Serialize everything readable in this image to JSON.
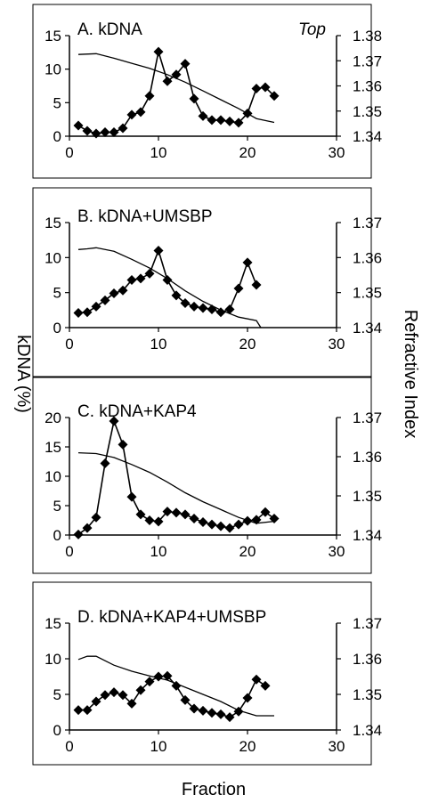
{
  "figure": {
    "ylabel_left": "kDNA (%)",
    "ylabel_right": "Refractive Index",
    "xlabel": "Fraction"
  },
  "chart_data": [
    {
      "type": "line",
      "title": "A. kDNA",
      "annotation": "Top",
      "xlim": [
        0,
        30
      ],
      "x_ticks": [
        0,
        10,
        20,
        30
      ],
      "ylim": [
        0,
        15
      ],
      "y_ticks": [
        0,
        5,
        10,
        15
      ],
      "y2lim": [
        1.34,
        1.38
      ],
      "y2_ticks": [
        "1.34",
        "1.35",
        "1.36",
        "1.37",
        "1.38"
      ],
      "series": [
        {
          "axis": "left",
          "marker": "diamond",
          "x": [
            1,
            2,
            3,
            4,
            5,
            6,
            7,
            8,
            9,
            10,
            11,
            12,
            13,
            14,
            15,
            16,
            17,
            18,
            19,
            20,
            21,
            22,
            23
          ],
          "y": [
            1.6,
            0.8,
            0.4,
            0.6,
            0.6,
            1.2,
            3.2,
            3.6,
            6.0,
            12.6,
            8.2,
            9.2,
            10.8,
            5.6,
            3.0,
            2.4,
            2.4,
            2.2,
            2.0,
            3.4,
            7.1,
            7.3,
            6.0
          ]
        },
        {
          "axis": "right",
          "marker": "none",
          "x": [
            1,
            3,
            5,
            7,
            9,
            11,
            13,
            15,
            17,
            19,
            21,
            23
          ],
          "y": [
            1.3725,
            1.3728,
            1.371,
            1.369,
            1.367,
            1.3645,
            1.3615,
            1.358,
            1.3545,
            1.351,
            1.347,
            1.3455
          ]
        }
      ]
    },
    {
      "type": "line",
      "title": "B. kDNA+UMSBP",
      "xlim": [
        0,
        30
      ],
      "x_ticks": [
        0,
        10,
        20,
        30
      ],
      "ylim": [
        0,
        15
      ],
      "y_ticks": [
        0,
        5,
        10,
        15
      ],
      "y2lim": [
        1.34,
        1.37
      ],
      "y2_ticks": [
        "1.34",
        "1.35",
        "1.36",
        "1.37"
      ],
      "series": [
        {
          "axis": "left",
          "marker": "diamond",
          "x": [
            1,
            2,
            3,
            4,
            5,
            6,
            7,
            8,
            9,
            10,
            11,
            12,
            13,
            14,
            15,
            16,
            17,
            18,
            19,
            20,
            21
          ],
          "y": [
            2.1,
            2.2,
            3.0,
            3.9,
            4.9,
            5.3,
            6.8,
            7.0,
            7.7,
            11.0,
            6.8,
            4.6,
            3.5,
            3.0,
            2.8,
            2.6,
            2.2,
            2.6,
            5.6,
            9.3,
            6.1
          ]
        },
        {
          "axis": "right",
          "marker": "none",
          "x": [
            1,
            2,
            3,
            5,
            7,
            9,
            11,
            13,
            15,
            17,
            19,
            21,
            21.5
          ],
          "y": [
            1.3623,
            1.3625,
            1.3628,
            1.3618,
            1.3595,
            1.357,
            1.354,
            1.3505,
            1.3475,
            1.345,
            1.343,
            1.342,
            1.34
          ]
        }
      ]
    },
    {
      "type": "line",
      "title": "C. kDNA+KAP4",
      "xlim": [
        0,
        30
      ],
      "x_ticks": [
        0,
        10,
        20,
        30
      ],
      "ylim": [
        0,
        20
      ],
      "y_ticks": [
        0,
        5,
        10,
        15,
        20
      ],
      "y2lim": [
        1.34,
        1.37
      ],
      "y2_ticks": [
        "1.34",
        "1.35",
        "1.36",
        "1.37"
      ],
      "series": [
        {
          "axis": "left",
          "marker": "diamond",
          "x": [
            1,
            2,
            3,
            4,
            5,
            6,
            7,
            8,
            9,
            10,
            11,
            12,
            13,
            14,
            15,
            16,
            17,
            18,
            19,
            20,
            21,
            22,
            23
          ],
          "y": [
            0.1,
            1.2,
            3.0,
            12.2,
            19.4,
            15.4,
            6.5,
            3.5,
            2.5,
            2.3,
            4.0,
            3.8,
            3.5,
            2.8,
            2.2,
            1.8,
            1.5,
            1.2,
            1.8,
            2.4,
            2.6,
            3.9,
            2.8
          ]
        },
        {
          "axis": "right",
          "marker": "none",
          "x": [
            1,
            3,
            5,
            7,
            9,
            11,
            13,
            15,
            17,
            19,
            21,
            23
          ],
          "y": [
            1.361,
            1.3608,
            1.3598,
            1.358,
            1.356,
            1.3535,
            1.3508,
            1.3485,
            1.3465,
            1.3445,
            1.343,
            1.3435
          ]
        }
      ]
    },
    {
      "type": "line",
      "title": "D. kDNA+KAP4+UMSBP",
      "xlim": [
        0,
        30
      ],
      "x_ticks": [
        0,
        10,
        20,
        30
      ],
      "ylim": [
        0,
        15
      ],
      "y_ticks": [
        0,
        5,
        10,
        15
      ],
      "y2lim": [
        1.34,
        1.37
      ],
      "y2_ticks": [
        "1.34",
        "1.35",
        "1.36",
        "1.37"
      ],
      "series": [
        {
          "axis": "left",
          "marker": "diamond",
          "x": [
            1,
            2,
            3,
            4,
            5,
            6,
            7,
            8,
            9,
            10,
            11,
            12,
            13,
            14,
            15,
            16,
            17,
            18,
            19,
            20,
            21,
            22
          ],
          "y": [
            2.8,
            2.8,
            4.0,
            4.9,
            5.3,
            4.9,
            3.7,
            5.6,
            6.8,
            7.5,
            7.6,
            6.2,
            4.2,
            3.0,
            2.7,
            2.4,
            2.2,
            1.8,
            2.6,
            4.5,
            7.1,
            6.2
          ]
        },
        {
          "axis": "right",
          "marker": "none",
          "x": [
            1,
            2,
            3,
            5,
            7,
            9,
            11,
            13,
            15,
            17,
            19,
            21,
            23
          ],
          "y": [
            1.3598,
            1.3607,
            1.3607,
            1.3582,
            1.3565,
            1.3552,
            1.354,
            1.352,
            1.35,
            1.348,
            1.3455,
            1.344,
            1.344
          ]
        }
      ]
    }
  ]
}
